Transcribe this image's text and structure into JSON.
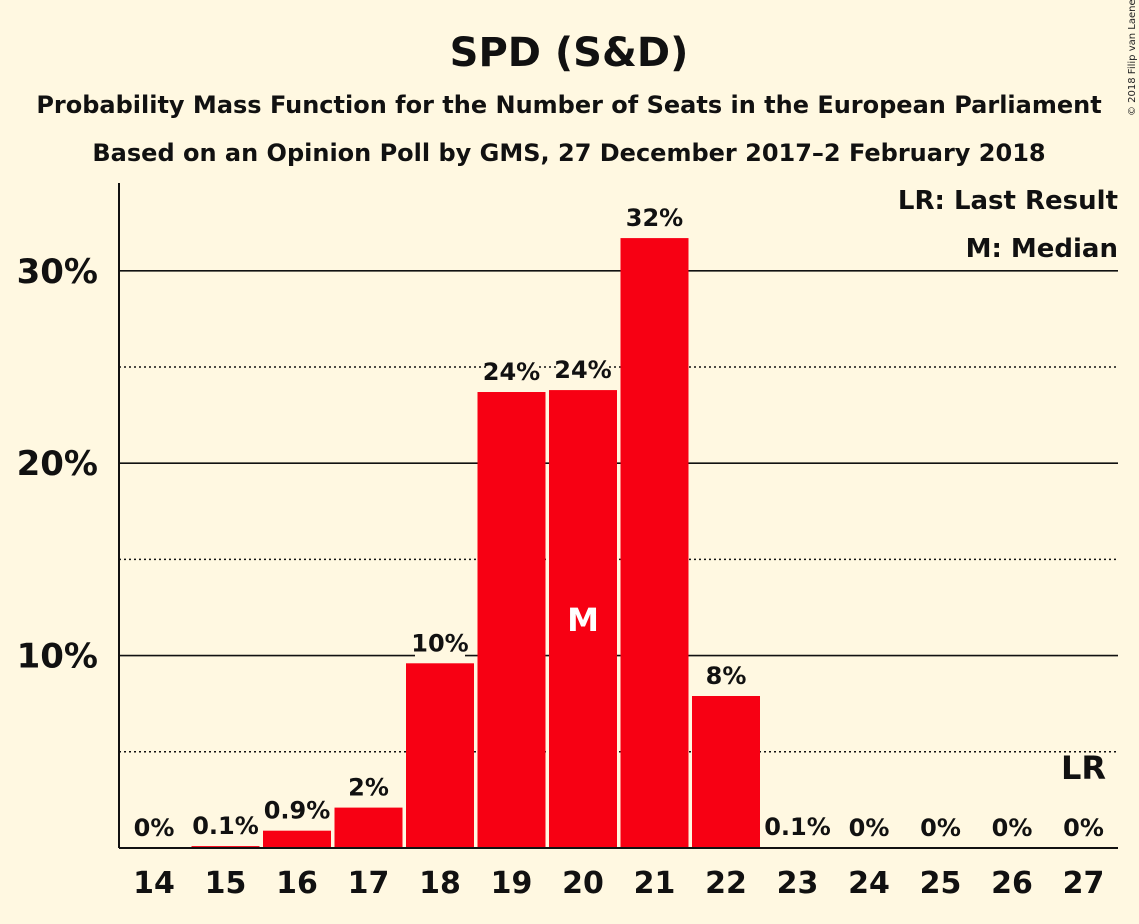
{
  "chart_data": {
    "type": "bar",
    "title": "SPD (S&D)",
    "subtitle1": "Probability Mass Function for the Number of Seats in the European Parliament",
    "subtitle2": "Based on an Opinion Poll by GMS, 27 December 2017–2 February 2018",
    "copyright": "© 2018 Filip van Laenen",
    "categories": [
      "14",
      "15",
      "16",
      "17",
      "18",
      "19",
      "20",
      "21",
      "22",
      "23",
      "24",
      "25",
      "26",
      "27"
    ],
    "values": [
      0,
      0.1,
      0.9,
      2.1,
      9.6,
      23.7,
      23.8,
      31.7,
      7.9,
      0.05,
      0,
      0,
      0,
      0
    ],
    "value_labels": [
      "0%",
      "0.1%",
      "0.9%",
      "2%",
      "10%",
      "24%",
      "24%",
      "32%",
      "8%",
      "0.1%",
      "0%",
      "0%",
      "0%",
      "0%"
    ],
    "ylim": [
      0,
      34.5
    ],
    "yticks": [
      {
        "value": 10,
        "label": "10%"
      },
      {
        "value": 20,
        "label": "20%"
      },
      {
        "value": 30,
        "label": "30%"
      }
    ],
    "dotted_lines": [
      5,
      15,
      25
    ],
    "bar_color": "#f70013",
    "background": "#fff8e1",
    "median_index": 6,
    "median_label": "M",
    "last_result_index": 13,
    "last_result_label": "LR",
    "legend": [
      "LR: Last Result",
      "M: Median"
    ],
    "legend_position": "top-right"
  }
}
